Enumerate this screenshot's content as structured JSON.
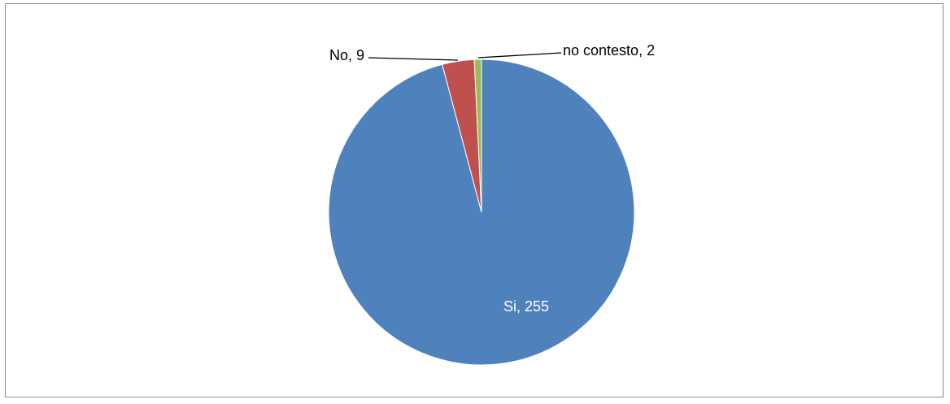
{
  "chart_data": {
    "type": "pie",
    "title": "",
    "categories": [
      "Si",
      "No",
      "no contesto"
    ],
    "values": [
      255,
      9,
      2
    ],
    "colors": [
      "#4f81bd",
      "#c0504d",
      "#9bbb59"
    ],
    "data_labels": [
      "Si, 255",
      "No, 9",
      "no contesto, 2"
    ],
    "label_color_inside": "#ffffff",
    "label_color_outside": "#000000",
    "legend": "none",
    "start_angle_deg": 0,
    "direction": "clockwise"
  }
}
